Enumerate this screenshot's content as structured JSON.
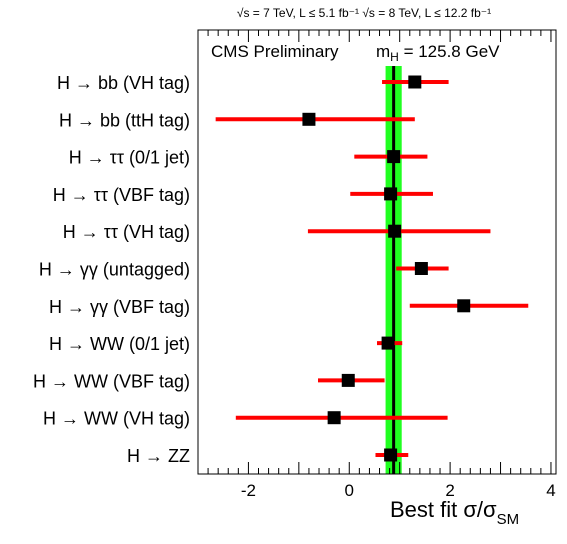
{
  "chart_data": {
    "type": "scatter",
    "orientation": "horizontal",
    "header": "√s = 7 TeV, L ≤ 5.1 fb⁻¹  √s = 8 TeV, L ≤ 12.2 fb⁻¹",
    "annotation_left": "CMS Preliminary",
    "annotation_right": "m",
    "annotation_right_sub": "H",
    "annotation_right_value": " = 125.8 GeV",
    "xlabel": "Best fit σ/σ",
    "xlabel_sub": "SM",
    "xlim": [
      -3,
      4.1
    ],
    "xticks": [
      -2,
      0,
      2,
      4
    ],
    "xticklabels": [
      "-2",
      "0",
      "2",
      "4"
    ],
    "combined": {
      "value": 0.88,
      "band_low": 0.72,
      "band_high": 1.04
    },
    "categories": [
      {
        "label": "H → bb (VH tag)",
        "value": 1.3,
        "low": 0.65,
        "high": 1.97
      },
      {
        "label": "H → bb (ttH tag)",
        "value": -0.8,
        "low": -2.65,
        "high": 1.3
      },
      {
        "label": "H → ττ (0/1 jet)",
        "value": 0.88,
        "low": 0.1,
        "high": 1.55
      },
      {
        "label": "H → ττ (VBF tag)",
        "value": 0.82,
        "low": 0.02,
        "high": 1.66
      },
      {
        "label": "H → ττ (VH tag)",
        "value": 0.9,
        "low": -0.82,
        "high": 2.8
      },
      {
        "label": "H → γγ (untagged)",
        "value": 1.43,
        "low": 0.93,
        "high": 1.97
      },
      {
        "label": "H → γγ (VBF tag)",
        "value": 2.27,
        "low": 1.2,
        "high": 3.55
      },
      {
        "label": "H → WW (0/1 jet)",
        "value": 0.77,
        "low": 0.55,
        "high": 1.05
      },
      {
        "label": "H → WW (VBF tag)",
        "value": -0.02,
        "low": -0.62,
        "high": 0.7
      },
      {
        "label": "H → WW (VH tag)",
        "value": -0.3,
        "low": -2.25,
        "high": 1.95
      },
      {
        "label": "H → ZZ",
        "value": 0.82,
        "low": 0.52,
        "high": 1.17
      }
    ],
    "colors": {
      "band": "#20ff20",
      "bars": "#ff0000",
      "marker": "#000000",
      "line": "#000000"
    },
    "grid": false,
    "legend": "none"
  }
}
